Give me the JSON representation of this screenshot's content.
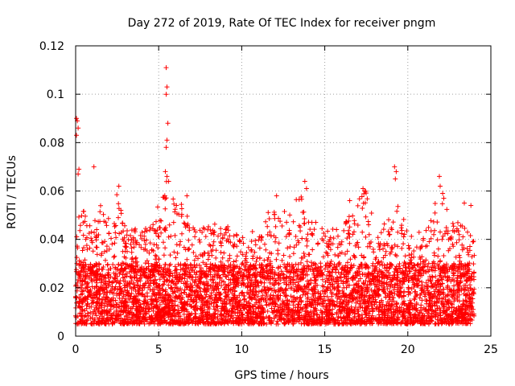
{
  "chart_data": {
    "type": "scatter",
    "title": "Day 272 of 2019, Rate Of TEC Index for receiver pngm",
    "xlabel": "GPS time / hours",
    "ylabel": "ROTI / TECUs",
    "xlim": [
      0,
      25
    ],
    "ylim": [
      0,
      0.12
    ],
    "grid": true,
    "marker": "+",
    "color": "#ff0000",
    "x_ticks": [
      {
        "value": 0,
        "label": "0"
      },
      {
        "value": 5,
        "label": "5"
      },
      {
        "value": 10,
        "label": "10"
      },
      {
        "value": 15,
        "label": "15"
      },
      {
        "value": 20,
        "label": "20"
      },
      {
        "value": 25,
        "label": "25"
      }
    ],
    "y_ticks": [
      {
        "value": 0,
        "label": "0"
      },
      {
        "value": 0.02,
        "label": "0.02"
      },
      {
        "value": 0.04,
        "label": "0.04"
      },
      {
        "value": 0.06,
        "label": "0.06"
      },
      {
        "value": 0.08,
        "label": "0.08"
      },
      {
        "value": 0.1,
        "label": "0.1"
      },
      {
        "value": 0.12,
        "label": "0.12"
      }
    ],
    "series": [
      {
        "name": "ROTI",
        "x_range": [
          0,
          24
        ],
        "typical_range": [
          0.005,
          0.03
        ],
        "envelope": [
          {
            "x": 0,
            "y": 0.045
          },
          {
            "x": 0.3,
            "y": 0.055
          },
          {
            "x": 1,
            "y": 0.045
          },
          {
            "x": 1.5,
            "y": 0.054
          },
          {
            "x": 2,
            "y": 0.05
          },
          {
            "x": 2.5,
            "y": 0.06
          },
          {
            "x": 3,
            "y": 0.045
          },
          {
            "x": 4,
            "y": 0.044
          },
          {
            "x": 5,
            "y": 0.055
          },
          {
            "x": 5.5,
            "y": 0.066
          },
          {
            "x": 6,
            "y": 0.054
          },
          {
            "x": 6.5,
            "y": 0.056
          },
          {
            "x": 7,
            "y": 0.045
          },
          {
            "x": 8,
            "y": 0.046
          },
          {
            "x": 9,
            "y": 0.047
          },
          {
            "x": 10,
            "y": 0.042
          },
          {
            "x": 11,
            "y": 0.044
          },
          {
            "x": 12,
            "y": 0.056
          },
          {
            "x": 13,
            "y": 0.052
          },
          {
            "x": 13.5,
            "y": 0.062
          },
          {
            "x": 14,
            "y": 0.05
          },
          {
            "x": 15,
            "y": 0.044
          },
          {
            "x": 16,
            "y": 0.045
          },
          {
            "x": 17,
            "y": 0.056
          },
          {
            "x": 17.5,
            "y": 0.061
          },
          {
            "x": 18,
            "y": 0.045
          },
          {
            "x": 19,
            "y": 0.05
          },
          {
            "x": 19.5,
            "y": 0.055
          },
          {
            "x": 20,
            "y": 0.042
          },
          {
            "x": 21,
            "y": 0.044
          },
          {
            "x": 22,
            "y": 0.062
          },
          {
            "x": 22.5,
            "y": 0.05
          },
          {
            "x": 23,
            "y": 0.048
          },
          {
            "x": 24,
            "y": 0.04
          }
        ],
        "outliers": [
          {
            "x": 0.05,
            "y": 0.09
          },
          {
            "x": 0.1,
            "y": 0.089
          },
          {
            "x": 0.15,
            "y": 0.086
          },
          {
            "x": 0.05,
            "y": 0.083
          },
          {
            "x": 0.2,
            "y": 0.069
          },
          {
            "x": 0.15,
            "y": 0.067
          },
          {
            "x": 1.1,
            "y": 0.07
          },
          {
            "x": 2.6,
            "y": 0.062
          },
          {
            "x": 5.45,
            "y": 0.111
          },
          {
            "x": 5.5,
            "y": 0.103
          },
          {
            "x": 5.45,
            "y": 0.1
          },
          {
            "x": 5.55,
            "y": 0.088
          },
          {
            "x": 5.5,
            "y": 0.081
          },
          {
            "x": 5.45,
            "y": 0.078
          },
          {
            "x": 5.4,
            "y": 0.068
          },
          {
            "x": 5.5,
            "y": 0.066
          },
          {
            "x": 5.6,
            "y": 0.064
          },
          {
            "x": 6.7,
            "y": 0.058
          },
          {
            "x": 12.1,
            "y": 0.058
          },
          {
            "x": 13.8,
            "y": 0.064
          },
          {
            "x": 13.9,
            "y": 0.061
          },
          {
            "x": 16.5,
            "y": 0.056
          },
          {
            "x": 17.3,
            "y": 0.061
          },
          {
            "x": 17.4,
            "y": 0.06
          },
          {
            "x": 19.2,
            "y": 0.07
          },
          {
            "x": 19.3,
            "y": 0.068
          },
          {
            "x": 19.25,
            "y": 0.065
          },
          {
            "x": 21.9,
            "y": 0.066
          },
          {
            "x": 21.95,
            "y": 0.062
          },
          {
            "x": 22.1,
            "y": 0.059
          },
          {
            "x": 23.4,
            "y": 0.055
          },
          {
            "x": 23.8,
            "y": 0.054
          }
        ]
      }
    ]
  }
}
